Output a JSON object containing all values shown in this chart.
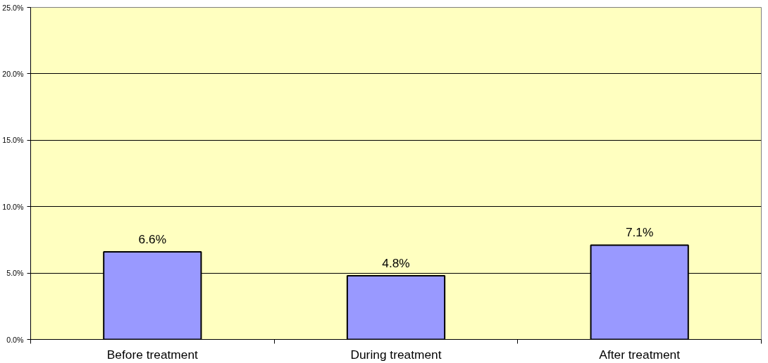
{
  "chart_data": {
    "type": "bar",
    "categories": [
      "Before treatment",
      "During treatment",
      "After treatment"
    ],
    "values": [
      6.6,
      4.8,
      7.1
    ],
    "value_labels": [
      "6.6%",
      "4.8%",
      "7.1%"
    ],
    "color": "#9999ff",
    "ylim": [
      0,
      25
    ],
    "yticks": [
      {
        "value": 0,
        "label": "0.0%"
      },
      {
        "value": 5,
        "label": "5.0%"
      },
      {
        "value": 10,
        "label": "10.0%"
      },
      {
        "value": 15,
        "label": "15.0%"
      },
      {
        "value": 20,
        "label": "20.0%"
      },
      {
        "value": 25,
        "label": "25.0%"
      }
    ],
    "grid": "y"
  }
}
